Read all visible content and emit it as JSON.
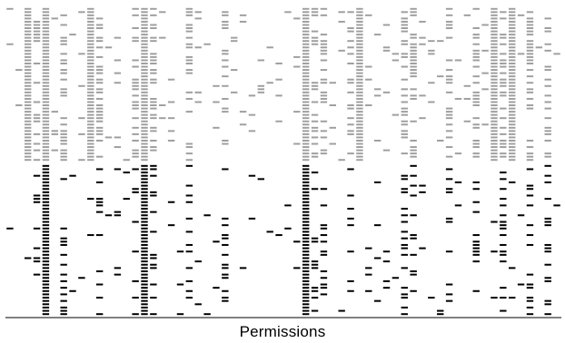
{
  "chart_data": {
    "type": "heatmap",
    "title": "",
    "xlabel": "Permissions",
    "ylabel": "",
    "grid": false,
    "legend": "none",
    "n_columns": 62,
    "rows_upper_gray": 48,
    "rows_lower_black": 46,
    "colors": {
      "upper": "#9e9e9e",
      "lower": "#000000",
      "axis": "#000000",
      "background": "#ffffff"
    },
    "dense_columns_gray": [
      2,
      4,
      9,
      15,
      33,
      39,
      54,
      56
    ],
    "dense_columns_black": [
      4,
      15,
      33
    ],
    "medium_columns": [
      3,
      6,
      10,
      14,
      16,
      20,
      24,
      34,
      35,
      38,
      44,
      45,
      49,
      52,
      55,
      58,
      60
    ]
  }
}
